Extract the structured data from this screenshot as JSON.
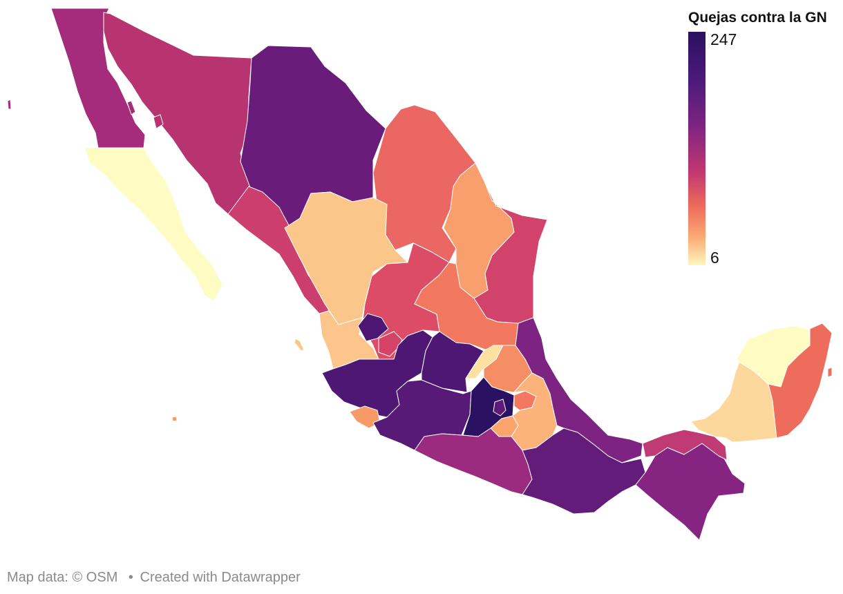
{
  "legend": {
    "title": "Quejas contra la GN",
    "max_label": "247",
    "min_label": "6",
    "min_value": 6,
    "max_value": 247
  },
  "attribution": {
    "map_data": "Map data: © OSM",
    "separator": "•",
    "created_with": "Created with Datawrapper"
  },
  "colors": {
    "scale_low": "#fdf7be",
    "scale_high": "#2a1161",
    "border": "#ffffff"
  },
  "regions": [
    {
      "name": "Baja California",
      "color": "#a52c7b"
    },
    {
      "name": "Baja California Sur",
      "color": "#fefcc3"
    },
    {
      "name": "Sonora",
      "color": "#b83471"
    },
    {
      "name": "Chihuahua",
      "color": "#6a1c7a"
    },
    {
      "name": "Coahuila",
      "color": "#ea6763"
    },
    {
      "name": "Nuevo León",
      "color": "#f89f6d"
    },
    {
      "name": "Tamaulipas",
      "color": "#d1436a"
    },
    {
      "name": "Sinaloa",
      "color": "#cb3e6d"
    },
    {
      "name": "Durango",
      "color": "#fbc68a"
    },
    {
      "name": "Zacatecas",
      "color": "#dd4c67"
    },
    {
      "name": "San Luis Potosí",
      "color": "#f2785f"
    },
    {
      "name": "Nayarit",
      "color": "#fcc58b"
    },
    {
      "name": "Aguascalientes",
      "color": "#d54466"
    },
    {
      "name": "Jalisco",
      "color": "#4d1773"
    },
    {
      "name": "Colima",
      "color": "#f79a68"
    },
    {
      "name": "Michoacán",
      "color": "#571a77"
    },
    {
      "name": "Guanajuato",
      "color": "#4d1773"
    },
    {
      "name": "Querétaro",
      "color": "#fde1a0"
    },
    {
      "name": "Hidalgo",
      "color": "#f58e64"
    },
    {
      "name": "Estado de México",
      "color": "#2a1161"
    },
    {
      "name": "Ciudad de México",
      "color": "#5d1a79"
    },
    {
      "name": "Morelos",
      "color": "#fba56d"
    },
    {
      "name": "Tlaxcala",
      "color": "#f2785f"
    },
    {
      "name": "Puebla",
      "color": "#fbb37b"
    },
    {
      "name": "Veracruz",
      "color": "#7d2482"
    },
    {
      "name": "Guerrero",
      "color": "#9a2b7f"
    },
    {
      "name": "Oaxaca",
      "color": "#641c7a"
    },
    {
      "name": "Chiapas",
      "color": "#852581"
    },
    {
      "name": "Tabasco",
      "color": "#c03a74"
    },
    {
      "name": "Campeche",
      "color": "#fdd89c"
    },
    {
      "name": "Yucatán",
      "color": "#fefcc3"
    },
    {
      "name": "Quintana Roo",
      "color": "#ee6c5b"
    }
  ]
}
